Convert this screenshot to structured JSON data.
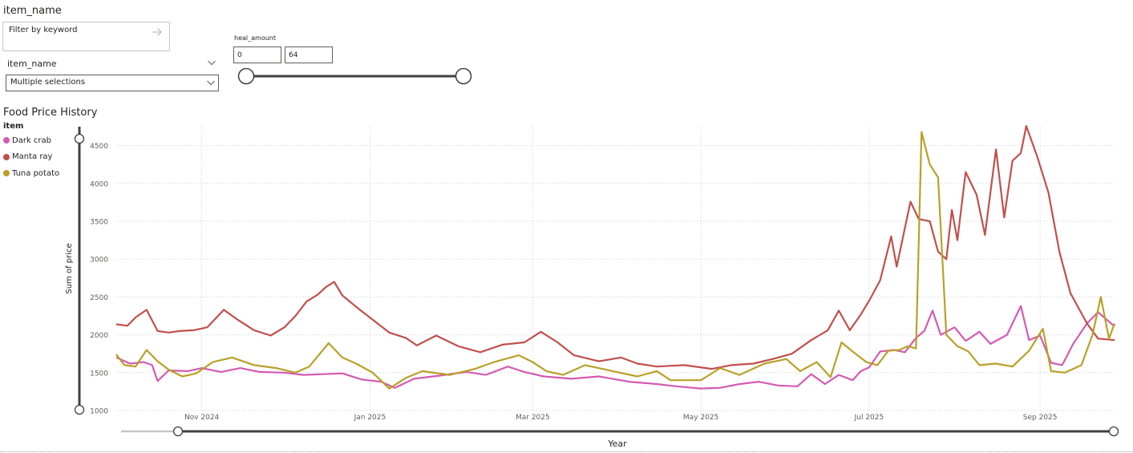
{
  "keyword_slicer": {
    "title": "item_name",
    "placeholder": "Filter by keyword"
  },
  "dropdown_slicer": {
    "header": "item_name",
    "value": "Multiple selections"
  },
  "range_slicer": {
    "label": "heal_amount",
    "min_value": "0",
    "max_value": "64",
    "selected_min_fraction": 0.0,
    "selected_max_fraction": 1.0
  },
  "colors": {
    "dark_crab": "#d35bb2",
    "manta_ray": "#c0504d",
    "tuna_potato": "#b8a128",
    "axis_slider": "#404040",
    "grid": "#e1e1e1"
  },
  "chart_data": {
    "type": "line",
    "title": "Food Price History",
    "legend_title": "item",
    "xlabel": "Year",
    "ylabel": "Sum of price",
    "ylim": [
      1000,
      4750
    ],
    "xlim": [
      "2024-10-01",
      "2025-09-28"
    ],
    "x_ticks": [
      {
        "label": "Nov 2024",
        "date": "2024-11-01"
      },
      {
        "label": "Jan 2025",
        "date": "2025-01-01"
      },
      {
        "label": "Mar 2025",
        "date": "2025-03-01"
      },
      {
        "label": "May 2025",
        "date": "2025-05-01"
      },
      {
        "label": "Jul 2025",
        "date": "2025-07-01"
      },
      {
        "label": "Sep 2025",
        "date": "2025-09-01"
      }
    ],
    "y_ticks": [
      1000,
      1500,
      2000,
      2500,
      3000,
      3500,
      4000,
      4500
    ],
    "grid": true,
    "legend_position": "top-left",
    "x_zoom_range": [
      "2024-10-25",
      "2025-09-28"
    ],
    "series": [
      {
        "name": "Dark crab",
        "color": "#d35bb2",
        "points": [
          [
            "2024-10-01",
            1700
          ],
          [
            "2024-10-06",
            1620
          ],
          [
            "2024-10-11",
            1640
          ],
          [
            "2024-10-14",
            1600
          ],
          [
            "2024-10-16",
            1390
          ],
          [
            "2024-10-20",
            1530
          ],
          [
            "2024-10-27",
            1520
          ],
          [
            "2024-11-01",
            1560
          ],
          [
            "2024-11-08",
            1510
          ],
          [
            "2024-11-15",
            1560
          ],
          [
            "2024-11-22",
            1510
          ],
          [
            "2024-12-01",
            1500
          ],
          [
            "2024-12-08",
            1470
          ],
          [
            "2024-12-15",
            1480
          ],
          [
            "2024-12-22",
            1490
          ],
          [
            "2024-12-29",
            1410
          ],
          [
            "2025-01-05",
            1380
          ],
          [
            "2025-01-10",
            1300
          ],
          [
            "2025-01-17",
            1420
          ],
          [
            "2025-01-26",
            1460
          ],
          [
            "2025-02-05",
            1510
          ],
          [
            "2025-02-12",
            1470
          ],
          [
            "2025-02-20",
            1580
          ],
          [
            "2025-02-26",
            1510
          ],
          [
            "2025-03-05",
            1450
          ],
          [
            "2025-03-15",
            1420
          ],
          [
            "2025-03-25",
            1450
          ],
          [
            "2025-04-05",
            1380
          ],
          [
            "2025-04-15",
            1350
          ],
          [
            "2025-04-22",
            1320
          ],
          [
            "2025-05-01",
            1290
          ],
          [
            "2025-05-08",
            1300
          ],
          [
            "2025-05-15",
            1350
          ],
          [
            "2025-05-22",
            1380
          ],
          [
            "2025-05-29",
            1330
          ],
          [
            "2025-06-05",
            1320
          ],
          [
            "2025-06-10",
            1480
          ],
          [
            "2025-06-15",
            1350
          ],
          [
            "2025-06-20",
            1470
          ],
          [
            "2025-06-25",
            1400
          ],
          [
            "2025-06-28",
            1520
          ],
          [
            "2025-07-01",
            1570
          ],
          [
            "2025-07-05",
            1780
          ],
          [
            "2025-07-10",
            1800
          ],
          [
            "2025-07-14",
            1770
          ],
          [
            "2025-07-18",
            1960
          ],
          [
            "2025-07-21",
            2050
          ],
          [
            "2025-07-24",
            2320
          ],
          [
            "2025-07-27",
            2000
          ],
          [
            "2025-08-01",
            2100
          ],
          [
            "2025-08-05",
            1920
          ],
          [
            "2025-08-10",
            2040
          ],
          [
            "2025-08-14",
            1880
          ],
          [
            "2025-08-20",
            2000
          ],
          [
            "2025-08-25",
            2380
          ],
          [
            "2025-08-28",
            1930
          ],
          [
            "2025-09-01",
            1990
          ],
          [
            "2025-09-05",
            1630
          ],
          [
            "2025-09-09",
            1600
          ],
          [
            "2025-09-13",
            1880
          ],
          [
            "2025-09-18",
            2150
          ],
          [
            "2025-09-22",
            2300
          ],
          [
            "2025-09-28",
            2110
          ]
        ]
      },
      {
        "name": "Manta ray",
        "color": "#c0504d",
        "points": [
          [
            "2024-10-01",
            2140
          ],
          [
            "2024-10-05",
            2120
          ],
          [
            "2024-10-08",
            2230
          ],
          [
            "2024-10-12",
            2330
          ],
          [
            "2024-10-16",
            2050
          ],
          [
            "2024-10-20",
            2030
          ],
          [
            "2024-10-24",
            2050
          ],
          [
            "2024-10-29",
            2060
          ],
          [
            "2024-11-03",
            2100
          ],
          [
            "2024-11-09",
            2330
          ],
          [
            "2024-11-14",
            2200
          ],
          [
            "2024-11-20",
            2060
          ],
          [
            "2024-11-26",
            1990
          ],
          [
            "2024-12-01",
            2100
          ],
          [
            "2024-12-05",
            2250
          ],
          [
            "2024-12-09",
            2440
          ],
          [
            "2024-12-13",
            2530
          ],
          [
            "2024-12-16",
            2630
          ],
          [
            "2024-12-19",
            2700
          ],
          [
            "2024-12-22",
            2520
          ],
          [
            "2024-12-27",
            2370
          ],
          [
            "2025-01-02",
            2200
          ],
          [
            "2025-01-08",
            2030
          ],
          [
            "2025-01-14",
            1960
          ],
          [
            "2025-01-18",
            1860
          ],
          [
            "2025-01-25",
            1990
          ],
          [
            "2025-02-02",
            1850
          ],
          [
            "2025-02-10",
            1770
          ],
          [
            "2025-02-18",
            1870
          ],
          [
            "2025-02-26",
            1900
          ],
          [
            "2025-03-04",
            2040
          ],
          [
            "2025-03-10",
            1900
          ],
          [
            "2025-03-16",
            1730
          ],
          [
            "2025-03-25",
            1650
          ],
          [
            "2025-04-02",
            1700
          ],
          [
            "2025-04-08",
            1620
          ],
          [
            "2025-04-15",
            1580
          ],
          [
            "2025-04-25",
            1600
          ],
          [
            "2025-05-05",
            1550
          ],
          [
            "2025-05-12",
            1600
          ],
          [
            "2025-05-20",
            1620
          ],
          [
            "2025-05-27",
            1680
          ],
          [
            "2025-06-03",
            1750
          ],
          [
            "2025-06-10",
            1930
          ],
          [
            "2025-06-16",
            2060
          ],
          [
            "2025-06-20",
            2320
          ],
          [
            "2025-06-24",
            2060
          ],
          [
            "2025-06-28",
            2270
          ],
          [
            "2025-07-01",
            2450
          ],
          [
            "2025-07-05",
            2720
          ],
          [
            "2025-07-09",
            3300
          ],
          [
            "2025-07-11",
            2900
          ],
          [
            "2025-07-16",
            3760
          ],
          [
            "2025-07-19",
            3530
          ],
          [
            "2025-07-23",
            3500
          ],
          [
            "2025-07-26",
            3100
          ],
          [
            "2025-07-29",
            3000
          ],
          [
            "2025-07-31",
            3650
          ],
          [
            "2025-08-02",
            3250
          ],
          [
            "2025-08-05",
            4150
          ],
          [
            "2025-08-09",
            3850
          ],
          [
            "2025-08-12",
            3320
          ],
          [
            "2025-08-16",
            4450
          ],
          [
            "2025-08-19",
            3550
          ],
          [
            "2025-08-22",
            4300
          ],
          [
            "2025-08-25",
            4400
          ],
          [
            "2025-08-27",
            4760
          ],
          [
            "2025-08-31",
            4350
          ],
          [
            "2025-09-04",
            3880
          ],
          [
            "2025-09-08",
            3100
          ],
          [
            "2025-09-12",
            2550
          ],
          [
            "2025-09-18",
            2150
          ],
          [
            "2025-09-22",
            1950
          ],
          [
            "2025-09-28",
            1930
          ]
        ]
      },
      {
        "name": "Tuna potato",
        "color": "#b8a128",
        "points": [
          [
            "2024-10-01",
            1740
          ],
          [
            "2024-10-04",
            1600
          ],
          [
            "2024-10-08",
            1580
          ],
          [
            "2024-10-12",
            1800
          ],
          [
            "2024-10-16",
            1650
          ],
          [
            "2024-10-20",
            1540
          ],
          [
            "2024-10-25",
            1450
          ],
          [
            "2024-10-30",
            1490
          ],
          [
            "2024-11-05",
            1640
          ],
          [
            "2024-11-12",
            1700
          ],
          [
            "2024-11-20",
            1600
          ],
          [
            "2024-11-28",
            1560
          ],
          [
            "2024-12-05",
            1500
          ],
          [
            "2024-12-10",
            1580
          ],
          [
            "2024-12-17",
            1890
          ],
          [
            "2024-12-22",
            1700
          ],
          [
            "2024-12-27",
            1620
          ],
          [
            "2025-01-02",
            1500
          ],
          [
            "2025-01-08",
            1290
          ],
          [
            "2025-01-14",
            1430
          ],
          [
            "2025-01-20",
            1520
          ],
          [
            "2025-01-30",
            1470
          ],
          [
            "2025-02-08",
            1550
          ],
          [
            "2025-02-15",
            1640
          ],
          [
            "2025-02-24",
            1730
          ],
          [
            "2025-03-01",
            1640
          ],
          [
            "2025-03-06",
            1520
          ],
          [
            "2025-03-12",
            1470
          ],
          [
            "2025-03-20",
            1600
          ],
          [
            "2025-03-30",
            1520
          ],
          [
            "2025-04-08",
            1450
          ],
          [
            "2025-04-15",
            1520
          ],
          [
            "2025-04-20",
            1400
          ],
          [
            "2025-05-01",
            1400
          ],
          [
            "2025-05-08",
            1560
          ],
          [
            "2025-05-15",
            1470
          ],
          [
            "2025-05-24",
            1620
          ],
          [
            "2025-06-01",
            1680
          ],
          [
            "2025-06-06",
            1520
          ],
          [
            "2025-06-12",
            1640
          ],
          [
            "2025-06-17",
            1440
          ],
          [
            "2025-06-21",
            1900
          ],
          [
            "2025-06-25",
            1780
          ],
          [
            "2025-06-30",
            1640
          ],
          [
            "2025-07-04",
            1600
          ],
          [
            "2025-07-08",
            1790
          ],
          [
            "2025-07-12",
            1800
          ],
          [
            "2025-07-15",
            1850
          ],
          [
            "2025-07-18",
            1820
          ],
          [
            "2025-07-20",
            4680
          ],
          [
            "2025-07-23",
            4250
          ],
          [
            "2025-07-26",
            4080
          ],
          [
            "2025-07-27",
            3400
          ],
          [
            "2025-07-29",
            2000
          ],
          [
            "2025-08-02",
            1850
          ],
          [
            "2025-08-06",
            1780
          ],
          [
            "2025-08-10",
            1600
          ],
          [
            "2025-08-16",
            1620
          ],
          [
            "2025-08-22",
            1580
          ],
          [
            "2025-08-28",
            1790
          ],
          [
            "2025-09-02",
            2080
          ],
          [
            "2025-09-05",
            1520
          ],
          [
            "2025-09-10",
            1500
          ],
          [
            "2025-09-16",
            1600
          ],
          [
            "2025-09-20",
            2000
          ],
          [
            "2025-09-23",
            2500
          ],
          [
            "2025-09-26",
            1950
          ],
          [
            "2025-09-28",
            2150
          ]
        ]
      }
    ]
  }
}
